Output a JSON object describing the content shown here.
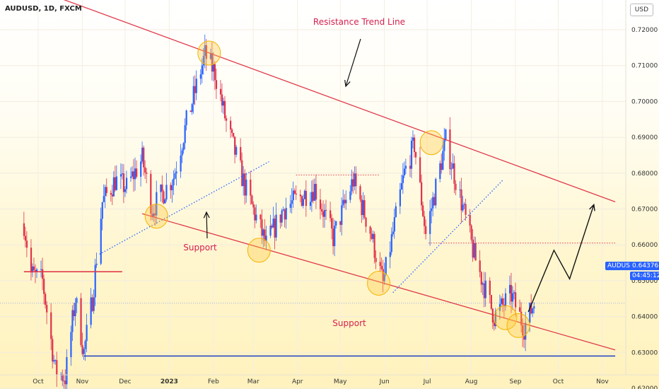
{
  "header": {
    "title": "AUDUSD, 1D, FXCM",
    "currency": "USD"
  },
  "price_tag": {
    "symbol": "AUDUSD",
    "price": "0.64376",
    "countdown": "04:45:12"
  },
  "colors": {
    "bull": "#2962ff",
    "bear": "#e0314b",
    "trend": "#e03a4b",
    "support_blue": "#1e40c9",
    "circle": "#ffc83d",
    "annotation": "#d6204f"
  },
  "chart_data": {
    "type": "candlestick",
    "symbol": "AUDUSD",
    "timeframe": "1D",
    "ylim": [
      0.612,
      0.723
    ],
    "y_ticks": [
      "0.72000",
      "0.71000",
      "0.70000",
      "0.69000",
      "0.68000",
      "0.67000",
      "0.66000",
      "0.65000",
      "0.64000",
      "0.63000",
      "0.62000"
    ],
    "x_ticks": [
      "Oct",
      "Nov",
      "Dec",
      "2023",
      "Feb",
      "Mar",
      "Apr",
      "May",
      "Jun",
      "Jul",
      "Aug",
      "Sep",
      "Oct",
      "Nov"
    ],
    "price_path": [
      [
        "2022-09-21",
        0.666
      ],
      [
        "2022-09-26",
        0.652
      ],
      [
        "2022-10-04",
        0.65
      ],
      [
        "2022-10-13",
        0.625
      ],
      [
        "2022-10-20",
        0.623
      ],
      [
        "2022-10-27",
        0.645
      ],
      [
        "2022-11-02",
        0.63
      ],
      [
        "2022-11-08",
        0.645
      ],
      [
        "2022-11-15",
        0.672
      ],
      [
        "2022-11-24",
        0.678
      ],
      [
        "2022-12-02",
        0.676
      ],
      [
        "2022-12-13",
        0.684
      ],
      [
        "2022-12-20",
        0.67
      ],
      [
        "2023-01-04",
        0.679
      ],
      [
        "2023-01-13",
        0.694
      ],
      [
        "2023-01-26",
        0.713
      ],
      [
        "2023-02-02",
        0.708
      ],
      [
        "2023-02-10",
        0.694
      ],
      [
        "2023-02-24",
        0.675
      ],
      [
        "2023-03-10",
        0.66
      ],
      [
        "2023-03-22",
        0.67
      ],
      [
        "2023-04-13",
        0.676
      ],
      [
        "2023-04-26",
        0.662
      ],
      [
        "2023-05-10",
        0.678
      ],
      [
        "2023-05-22",
        0.664
      ],
      [
        "2023-05-31",
        0.649
      ],
      [
        "2023-06-15",
        0.68
      ],
      [
        "2023-06-22",
        0.688
      ],
      [
        "2023-06-30",
        0.663
      ],
      [
        "2023-07-14",
        0.689
      ],
      [
        "2023-07-25",
        0.672
      ],
      [
        "2023-08-03",
        0.657
      ],
      [
        "2023-08-17",
        0.64
      ],
      [
        "2023-08-29",
        0.646
      ],
      [
        "2023-09-07",
        0.637
      ],
      [
        "2023-09-14",
        0.6438
      ]
    ],
    "levels": [
      {
        "style": "solid",
        "color": "red",
        "price": 0.6525,
        "from": "2022-09-21",
        "to": "2022-11-29"
      },
      {
        "style": "solid",
        "color": "blue",
        "price": 0.629,
        "from": "2022-11-02",
        "to": "2023-11-10"
      },
      {
        "style": "dotted",
        "color": "red",
        "price": 0.6795,
        "from": "2023-03-31",
        "to": "2023-05-29"
      },
      {
        "style": "dotted",
        "color": "red",
        "price": 0.6605,
        "from": "2023-07-02",
        "to": "2023-11-10"
      }
    ],
    "trendlines": [
      {
        "style": "solid",
        "color": "red",
        "from": [
          "2022-10-01",
          0.731
        ],
        "to": [
          "2023-11-10",
          0.672
        ]
      },
      {
        "style": "solid",
        "color": "red",
        "from": [
          "2022-12-13",
          0.6687
        ],
        "to": [
          "2023-11-10",
          0.6307
        ]
      },
      {
        "style": "dotted",
        "color": "blue",
        "from": [
          "2022-11-13",
          0.6574
        ],
        "to": [
          "2023-03-12",
          0.6832
        ]
      },
      {
        "style": "dotted",
        "color": "blue",
        "from": [
          "2023-06-07",
          0.6467
        ],
        "to": [
          "2023-08-23",
          0.678
        ]
      }
    ],
    "highlight_points": [
      [
        "2022-12-23",
        0.668
      ],
      [
        "2023-01-29",
        0.7135
      ],
      [
        "2023-03-05",
        0.6585
      ],
      [
        "2023-05-28",
        0.6493
      ],
      [
        "2023-07-04",
        0.6885
      ],
      [
        "2023-08-25",
        0.6397
      ],
      [
        "2023-09-03",
        0.6375
      ]
    ],
    "projection": [
      [
        "2023-09-10",
        0.6413
      ],
      [
        "2023-09-28",
        0.6585
      ],
      [
        "2023-10-09",
        0.6505
      ],
      [
        "2023-10-26",
        0.6712
      ]
    ],
    "annotations": [
      {
        "text": "Resistance Trend Line"
      },
      {
        "text": "Support"
      },
      {
        "text": "Support"
      }
    ],
    "last_price": 0.64376
  }
}
